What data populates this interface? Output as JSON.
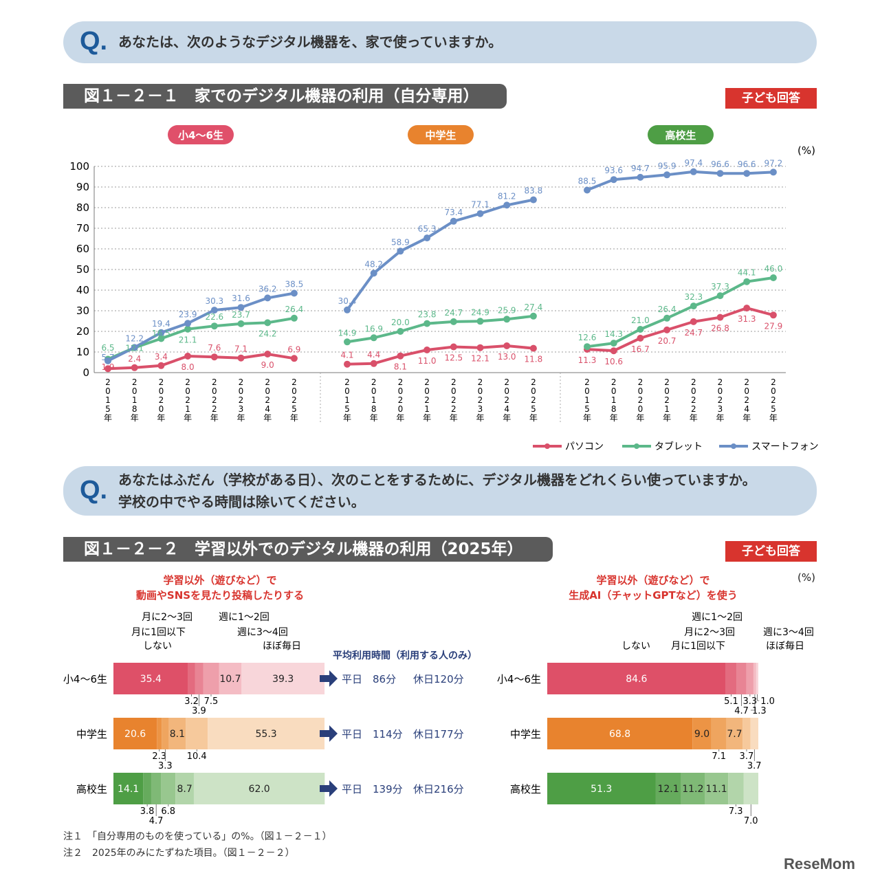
{
  "q1": {
    "mark": "Q.",
    "text": "あなたは、次のようなデジタル機器を、家で使っていますか。"
  },
  "fig1": {
    "title": "図１－２－１　家でのデジタル機器の利用（自分専用）",
    "badge": "子ども回答"
  },
  "q2": {
    "mark": "Q.",
    "line1": "あなたはふだん（学校がある日）、次のことをするために、デジタル機器をどれくらい使っていますか。",
    "line2": "学校の中でやる時間は除いてください。"
  },
  "fig2": {
    "title": "図１－２－２　学習以外でのデジタル機器の利用（2025年）",
    "badge": "子ども回答"
  },
  "colors": {
    "pc": "#d9506a",
    "tablet": "#5cb88a",
    "phone": "#6b8fc6"
  },
  "chart_data": [
    {
      "type": "line",
      "unit": "(%)",
      "ylim": [
        0,
        100
      ],
      "yticks": [
        0,
        10,
        20,
        30,
        40,
        50,
        60,
        70,
        80,
        90,
        100
      ],
      "grid": true,
      "legend_position": "bottom-right",
      "x": [
        "2015年",
        "2018年",
        "2020年",
        "2021年",
        "2022年",
        "2023年",
        "2024年",
        "2025年"
      ],
      "groups": [
        {
          "name": "小4〜6生",
          "color": "#e0506a",
          "series": [
            {
              "name": "パソコン",
              "values": [
                1.9,
                2.4,
                3.4,
                8.0,
                7.6,
                7.1,
                9.0,
                6.9
              ]
            },
            {
              "name": "タブレット",
              "values": [
                6.5,
                12.1,
                16.5,
                21.1,
                22.6,
                23.7,
                24.2,
                26.4
              ]
            },
            {
              "name": "スマートフォン",
              "values": [
                5.7,
                12.2,
                19.4,
                23.9,
                30.3,
                31.6,
                36.2,
                38.5
              ]
            }
          ]
        },
        {
          "name": "中学生",
          "color": "#e8832e",
          "series": [
            {
              "name": "パソコン",
              "values": [
                4.1,
                4.4,
                8.1,
                11.0,
                12.5,
                12.1,
                13.0,
                11.8
              ]
            },
            {
              "name": "タブレット",
              "values": [
                14.9,
                16.9,
                20.0,
                23.8,
                24.7,
                24.9,
                25.9,
                27.4
              ]
            },
            {
              "name": "スマートフォン",
              "values": [
                30.4,
                48.2,
                58.9,
                65.3,
                73.4,
                77.1,
                81.2,
                83.8
              ]
            }
          ]
        },
        {
          "name": "高校生",
          "color": "#4e9e45",
          "series": [
            {
              "name": "パソコン",
              "values": [
                11.3,
                10.6,
                16.7,
                20.7,
                24.7,
                26.8,
                31.3,
                27.9
              ]
            },
            {
              "name": "タブレット",
              "values": [
                12.6,
                14.3,
                21.0,
                26.4,
                32.3,
                37.3,
                44.1,
                46.0
              ]
            },
            {
              "name": "スマートフォン",
              "values": [
                88.5,
                93.6,
                94.7,
                95.9,
                97.4,
                96.6,
                96.6,
                97.2
              ]
            }
          ]
        }
      ]
    },
    {
      "type": "bar",
      "stacked": true,
      "orientation": "horizontal",
      "unit": "(%)",
      "title_line1": "学習以外（遊びなど）で",
      "title_line2": "動画やSNSを見たり投稿したりする",
      "categories_legend": [
        "しない",
        "月に1回以下",
        "月に2〜3回",
        "週に1〜2回",
        "週に3〜4回",
        "ほぼ毎日"
      ],
      "rows": [
        {
          "name": "小4〜6生",
          "values": [
            35.4,
            3.2,
            3.9,
            7.5,
            10.7,
            39.3
          ]
        },
        {
          "name": "中学生",
          "values": [
            20.6,
            2.3,
            3.3,
            8.1,
            10.4,
            55.3
          ]
        },
        {
          "name": "高校生",
          "values": [
            14.1,
            3.8,
            4.7,
            6.8,
            8.7,
            62.0
          ]
        }
      ],
      "avg_header": "平均利用時間（利用する人のみ）",
      "avg": [
        {
          "weekday": "平日　86分",
          "holiday": "休日120分"
        },
        {
          "weekday": "平日　114分",
          "holiday": "休日177分"
        },
        {
          "weekday": "平日　139分",
          "holiday": "休日216分"
        }
      ]
    },
    {
      "type": "bar",
      "stacked": true,
      "orientation": "horizontal",
      "unit": "(%)",
      "title_line1": "学習以外（遊びなど）で",
      "title_line2": "生成AI（チャットGPTなど）を使う",
      "categories_legend": [
        "しない",
        "月に1回以下",
        "月に2〜3回",
        "週に1〜2回",
        "週に3〜4回",
        "ほぼ毎日"
      ],
      "rows": [
        {
          "name": "小4〜6生",
          "values": [
            84.6,
            5.1,
            4.7,
            3.3,
            1.3,
            1.0
          ]
        },
        {
          "name": "中学生",
          "values": [
            68.8,
            9.0,
            7.1,
            7.7,
            3.7,
            3.7
          ]
        },
        {
          "name": "高校生",
          "values": [
            51.3,
            12.1,
            11.2,
            11.1,
            7.3,
            7.0
          ]
        }
      ]
    }
  ],
  "notes": [
    "注１　「自分専用のものを使っている」の%。（図１－２－１）",
    "注２　2025年のみにたずねた項目。（図１－２－２）"
  ],
  "watermark": "ReseMom"
}
